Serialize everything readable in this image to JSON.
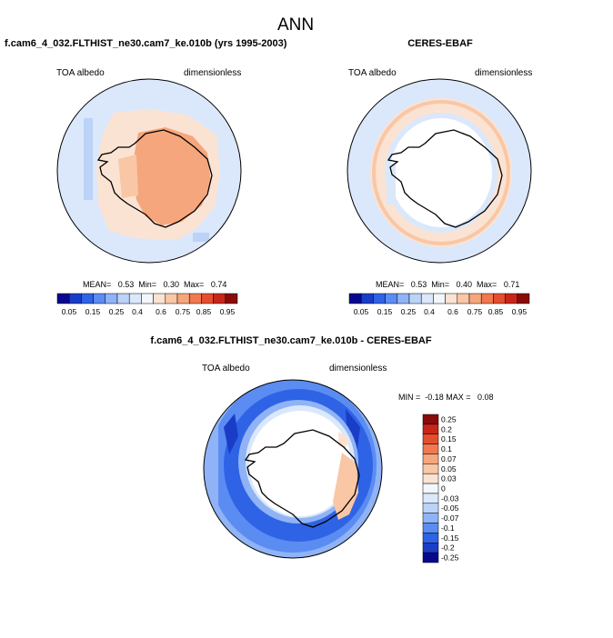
{
  "figure": {
    "title": "ANN"
  },
  "panels": [
    {
      "title": "f.cam6_4_032.FLTHIST_ne30.cam7_ke.010b (yrs 1995-2003)",
      "left_label": "TOA albedo",
      "right_label": "dimensionless",
      "stats_text": "MEAN=   0.53  Min=   0.30  Max=   0.74"
    },
    {
      "title": "CERES-EBAF",
      "left_label": "TOA albedo",
      "right_label": "dimensionless",
      "stats_text": "MEAN=   0.53  Min=   0.40  Max=   0.71"
    },
    {
      "title": "f.cam6_4_032.FLTHIST_ne30.cam7_ke.010b - CERES-EBAF",
      "left_label": "TOA albedo",
      "right_label": "dimensionless",
      "stats_text": "MIN =  -0.18 MAX =   0.08"
    }
  ],
  "colorbar_abs": {
    "labels": [
      "0.05",
      "0.15",
      "0.25",
      "0.4",
      "0.6",
      "0.75",
      "0.85",
      "0.95"
    ],
    "colors": [
      "#08088f",
      "#1a3dc8",
      "#2f63e6",
      "#5b8cf2",
      "#8fb3f6",
      "#bcd3f8",
      "#dbe8fb",
      "#f3f6fb",
      "#fbe3d3",
      "#f9c7a6",
      "#f6a67c",
      "#f2784f",
      "#e54e2c",
      "#c8261a",
      "#8b0a0a"
    ]
  },
  "colorbar_diff": {
    "labels": [
      "0.25",
      "0.2",
      "0.15",
      "0.1",
      "0.07",
      "0.05",
      "0.03",
      "0",
      "-0.03",
      "-0.05",
      "-0.07",
      "-0.1",
      "-0.15",
      "-0.2",
      "-0.25"
    ],
    "colors": [
      "#8b0a0a",
      "#c8261a",
      "#e54e2c",
      "#f2784f",
      "#f6a67c",
      "#f9c7a6",
      "#fbe3d3",
      "#f3f6fb",
      "#dbe8fb",
      "#bcd3f8",
      "#8fb3f6",
      "#5b8cf2",
      "#2f63e6",
      "#1a3dc8",
      "#08088f"
    ]
  },
  "chart_data": [
    {
      "type": "heatmap",
      "title": "f.cam6_4_032.FLTHIST_ne30.cam7_ke.010b (yrs 1995-2003)",
      "variable": "TOA albedo",
      "units": "dimensionless",
      "projection": "south polar stereographic",
      "mean": 0.53,
      "min": 0.3,
      "max": 0.74,
      "levels": [
        0.05,
        0.1,
        0.15,
        0.2,
        0.25,
        0.3,
        0.4,
        0.5,
        0.6,
        0.7,
        0.75,
        0.8,
        0.85,
        0.9,
        0.95
      ]
    },
    {
      "type": "heatmap",
      "title": "CERES-EBAF",
      "variable": "TOA albedo",
      "units": "dimensionless",
      "projection": "south polar stereographic",
      "mean": 0.53,
      "min": 0.4,
      "max": 0.71,
      "levels": [
        0.05,
        0.1,
        0.15,
        0.2,
        0.25,
        0.3,
        0.4,
        0.5,
        0.6,
        0.7,
        0.75,
        0.8,
        0.85,
        0.9,
        0.95
      ]
    },
    {
      "type": "heatmap",
      "title": "f.cam6_4_032.FLTHIST_ne30.cam7_ke.010b - CERES-EBAF",
      "variable": "TOA albedo",
      "units": "dimensionless",
      "projection": "south polar stereographic",
      "min": -0.18,
      "max": 0.08,
      "levels": [
        -0.25,
        -0.2,
        -0.15,
        -0.1,
        -0.07,
        -0.05,
        -0.03,
        0,
        0.03,
        0.05,
        0.07,
        0.1,
        0.15,
        0.2,
        0.25
      ]
    }
  ]
}
